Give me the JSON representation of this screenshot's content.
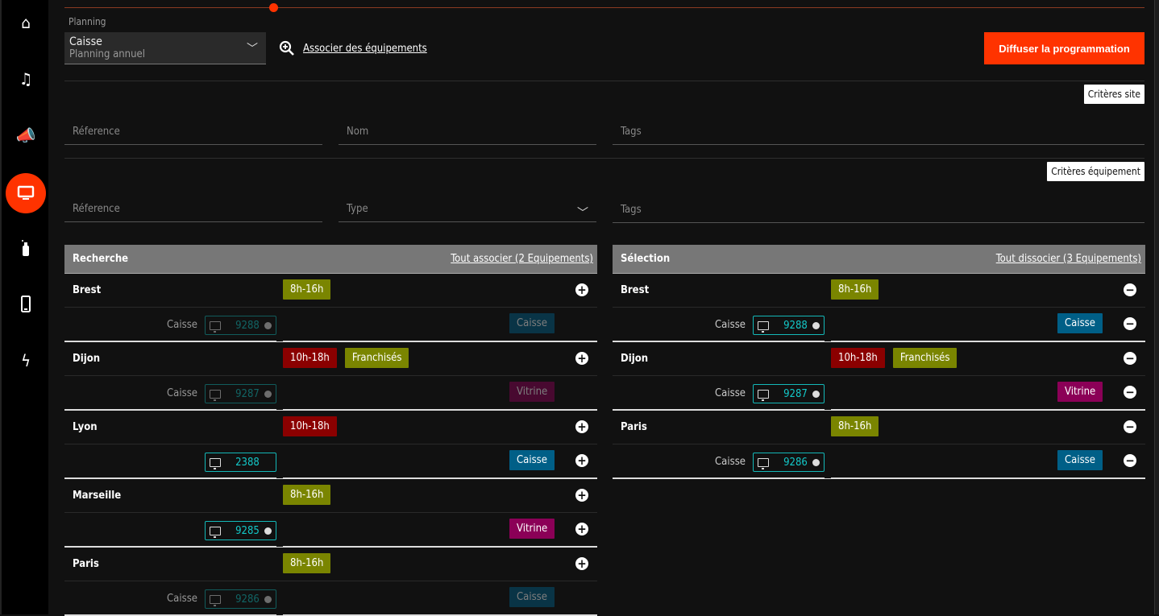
{
  "sidebar": {
    "items": [
      {
        "icon": "home-icon",
        "glyph": "⌂",
        "active": false
      },
      {
        "icon": "music-icon",
        "glyph": "♫",
        "active": false
      },
      {
        "icon": "megaphone-icon",
        "glyph": "📣",
        "active": false
      },
      {
        "icon": "monitor-icon",
        "glyph": "🖵",
        "active": true
      },
      {
        "icon": "spray-bottle-icon",
        "glyph": "🧴",
        "active": false
      },
      {
        "icon": "phone-icon",
        "glyph": "▯",
        "active": false
      },
      {
        "icon": "lightning-icon",
        "glyph": "ϟ",
        "active": false
      }
    ]
  },
  "planning": {
    "label": "Planning",
    "value": "Caisse",
    "subvalue": "Planning annuel"
  },
  "associate_link": "Associer des équipements",
  "broadcast_button": "Diffuser la programmation",
  "site_criteria": {
    "button": "Critères site",
    "reference": "Réference",
    "name": "Nom",
    "tags": "Tags"
  },
  "equipment_criteria": {
    "button": "Critères équipement",
    "reference": "Réference",
    "type": "Type",
    "tags": "Tags"
  },
  "colors": {
    "accent": "#ff3300",
    "olive": "#7a8500",
    "red": "#8b0000",
    "caisse": "#005f87",
    "vitrine": "#8b0057",
    "chip": "#13b8b8"
  },
  "search": {
    "title": "Recherche",
    "action": "Tout associer (2 Equipements)",
    "sites": [
      {
        "name": "Brest",
        "tags": [
          {
            "label": "8h-16h",
            "color": "olive"
          }
        ],
        "equipments": [
          {
            "type_label": "Caisse",
            "number": "9288",
            "status_dot": true,
            "tag": {
              "label": "Caisse",
              "color": "blue"
            },
            "associated": true
          }
        ]
      },
      {
        "name": "Dijon",
        "tags": [
          {
            "label": "10h-18h",
            "color": "red"
          },
          {
            "label": "Franchisés",
            "color": "olive"
          }
        ],
        "equipments": [
          {
            "type_label": "Caisse",
            "number": "9287",
            "status_dot": true,
            "tag": {
              "label": "Vitrine",
              "color": "purple"
            },
            "associated": true
          }
        ]
      },
      {
        "name": "Lyon",
        "tags": [
          {
            "label": "10h-18h",
            "color": "red"
          }
        ],
        "equipments": [
          {
            "type_label": "",
            "number": "2388",
            "status_dot": false,
            "tag": {
              "label": "Caisse",
              "color": "blue"
            },
            "associated": false
          }
        ]
      },
      {
        "name": "Marseille",
        "tags": [
          {
            "label": "8h-16h",
            "color": "olive"
          }
        ],
        "equipments": [
          {
            "type_label": "",
            "number": "9285",
            "status_dot": true,
            "tag": {
              "label": "Vitrine",
              "color": "purple"
            },
            "associated": false
          }
        ]
      },
      {
        "name": "Paris",
        "tags": [
          {
            "label": "8h-16h",
            "color": "olive"
          }
        ],
        "equipments": [
          {
            "type_label": "Caisse",
            "number": "9286",
            "status_dot": true,
            "tag": {
              "label": "Caisse",
              "color": "blue"
            },
            "associated": true
          }
        ]
      }
    ]
  },
  "selection": {
    "title": "Sélection",
    "action": "Tout dissocier (3 Equipements)",
    "sites": [
      {
        "name": "Brest",
        "tags": [
          {
            "label": "8h-16h",
            "color": "olive"
          }
        ],
        "equipments": [
          {
            "type_label": "Caisse",
            "number": "9288",
            "status_dot": true,
            "tag": {
              "label": "Caisse",
              "color": "blue"
            }
          }
        ]
      },
      {
        "name": "Dijon",
        "tags": [
          {
            "label": "10h-18h",
            "color": "red"
          },
          {
            "label": "Franchisés",
            "color": "olive"
          }
        ],
        "equipments": [
          {
            "type_label": "Caisse",
            "number": "9287",
            "status_dot": true,
            "tag": {
              "label": "Vitrine",
              "color": "purple"
            }
          }
        ]
      },
      {
        "name": "Paris",
        "tags": [
          {
            "label": "8h-16h",
            "color": "olive"
          }
        ],
        "equipments": [
          {
            "type_label": "Caisse",
            "number": "9286",
            "status_dot": true,
            "tag": {
              "label": "Caisse",
              "color": "blue"
            }
          }
        ]
      }
    ]
  }
}
